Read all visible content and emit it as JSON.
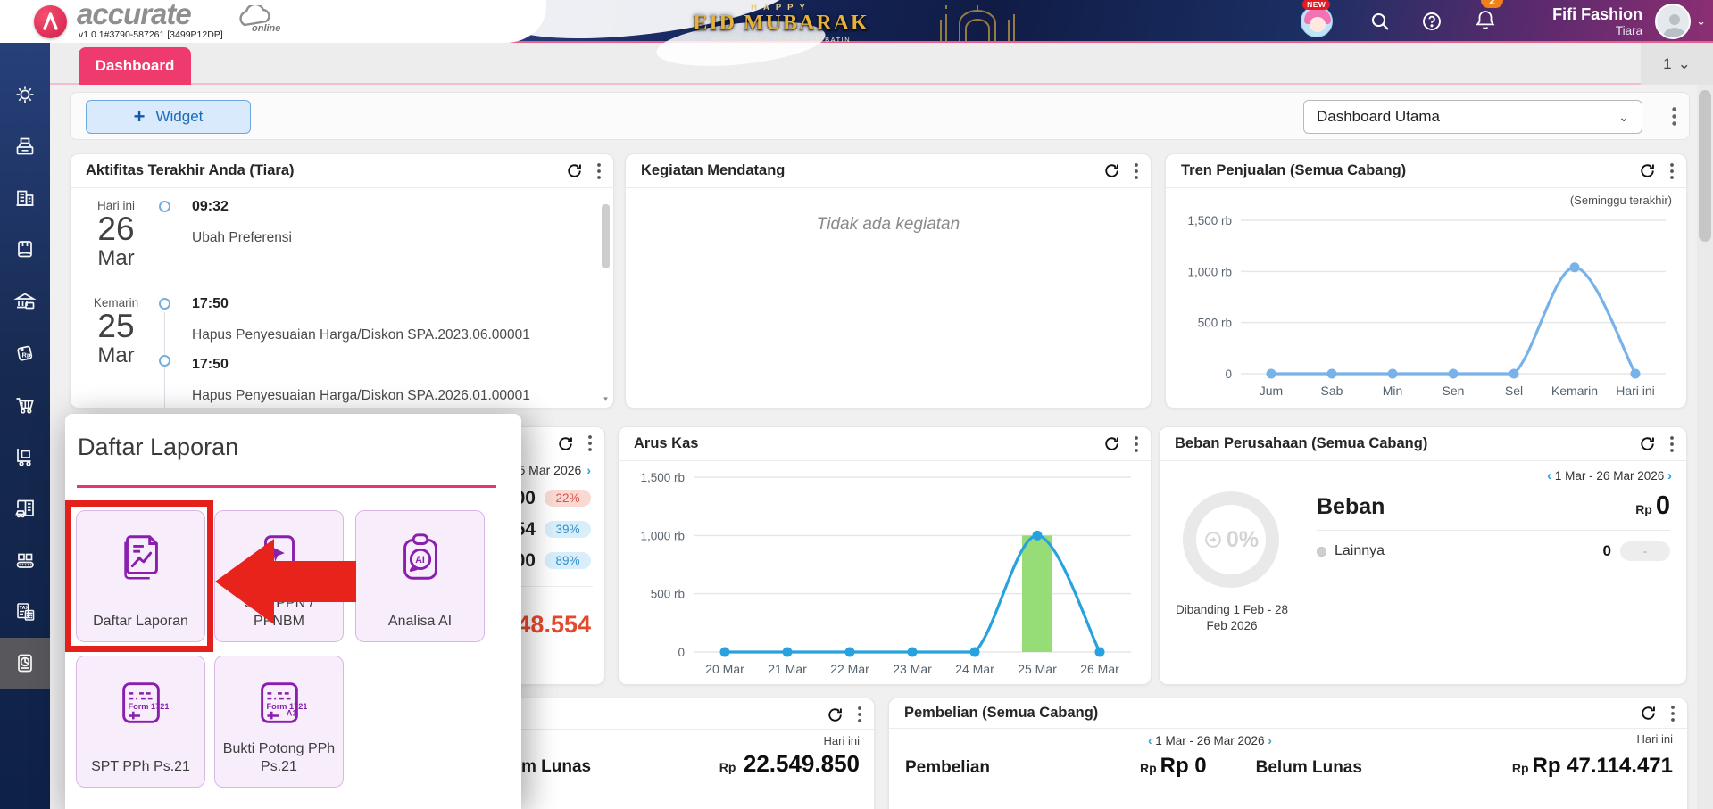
{
  "topbar": {
    "brand": {
      "name": "accurate",
      "online_label": "online",
      "version": "v1.0.1#3790-587261 [3499P12DP]"
    },
    "banner": {
      "happy": "HAPPY",
      "title": "EID MUBARAK",
      "subtitle": "MOHON MAAF LAHIR DAN BATIN"
    },
    "new_badge": "NEW",
    "notification_count": "2",
    "user": {
      "company": "Fifi Fashion",
      "name": "Tiara"
    }
  },
  "tabbar": {
    "tabs": [
      {
        "label": "Dashboard",
        "active": true
      }
    ],
    "tab_count": "1"
  },
  "toolbar": {
    "widget_button": "Widget",
    "dashboard_select": "Dashboard Utama"
  },
  "sidebar": {
    "items": [
      "settings",
      "sales-register",
      "company",
      "journal",
      "bank",
      "price-list-rp",
      "purchases-cart",
      "inventory-trolley",
      "fixed-assets",
      "manufacturing",
      "tax",
      "reports"
    ],
    "active_item": "reports",
    "tax_label": "TAX",
    "rp_label": "Rp"
  },
  "cards": {
    "aktifitas": {
      "title": "Aktifitas Terakhir Anda (Tiara)",
      "entries": [
        {
          "day_label": "Hari ini",
          "day": "26",
          "month": "Mar",
          "items": [
            {
              "time": "09:32",
              "text": "Ubah Preferensi"
            }
          ]
        },
        {
          "day_label": "Kemarin",
          "day": "25",
          "month": "Mar",
          "items": [
            {
              "time": "17:50",
              "text": "Hapus Penyesuaian Harga/Diskon SPA.2023.06.00001"
            },
            {
              "time": "17:50",
              "text": "Hapus Penyesuaian Harga/Diskon SPA.2026.01.00001"
            }
          ]
        }
      ]
    },
    "kegiatan": {
      "title": "Kegiatan Mendatang",
      "empty_text": "Tidak ada kegiatan"
    },
    "tren_penjualan": {
      "title": "Tren Penjualan (Semua Cabang)",
      "subtitle": "(Seminggu terakhir)"
    },
    "penjualan_partial": {
      "date_fragment": "5 Mar 2026",
      "rows": [
        {
          "value": "000",
          "badge": "22%"
        },
        {
          "value": "254",
          "badge": "39%"
        },
        {
          "value": "300",
          "badge": "89%"
        }
      ],
      "total_fragment": "048.554"
    },
    "arus_kas": {
      "title": "Arus Kas"
    },
    "beban": {
      "title": "Beban Perusahaan (Semua Cabang)",
      "date_range": "1 Mar - 26 Mar 2026",
      "donut_percent": "0%",
      "donut_caption": "Dibanding 1 Feb - 28 Feb 2026",
      "section_label": "Beban",
      "currency": "Rp",
      "total": "0",
      "row_label": "Lainnya",
      "row_value": "0",
      "row_badge": "-"
    },
    "lunas_partial": {
      "period_label": "Hari ini",
      "label_fragment": "m Lunas",
      "currency": "Rp",
      "amount": "22.549.850"
    },
    "pembelian": {
      "title": "Pembelian (Semua Cabang)",
      "date_range": "1 Mar - 26 Mar 2026",
      "period_label": "Hari ini",
      "left_label": "Pembelian",
      "left_currency": "Rp",
      "left_amount": "Rp 0",
      "right_label": "Belum Lunas",
      "right_currency": "Rp",
      "right_amount": "Rp 47.114.471"
    }
  },
  "popup": {
    "title": "Daftar Laporan",
    "highlighted_tile": "Daftar Laporan",
    "tiles": [
      {
        "label": "Daftar Laporan"
      },
      {
        "label": "SPT PPN / PPNBM"
      },
      {
        "label": "Analisa AI"
      },
      {
        "label": "SPT PPh Ps.21"
      },
      {
        "label": "Bukti Potong PPh Ps.21"
      }
    ],
    "icon_texts": {
      "ai": "AI",
      "form1721": "Form 1721",
      "a1": "A1"
    }
  },
  "icons": {
    "plus": "+",
    "chevron_down": "⌄",
    "chevron_left": "‹",
    "chevron_right": "›",
    "scroll_down": "▾"
  },
  "chart_data": [
    {
      "id": "tren_penjualan",
      "type": "line",
      "title": "Tren Penjualan (Semua Cabang)",
      "subtitle": "(Seminggu terakhir)",
      "categories": [
        "Jum",
        "Sab",
        "Min",
        "Sen",
        "Sel",
        "Kemarin",
        "Hari ini"
      ],
      "values": [
        0,
        0,
        0,
        0,
        0,
        1040,
        0
      ],
      "unit": "rb",
      "ylim": [
        0,
        1500
      ],
      "yticks": [
        0,
        500,
        1000,
        1500
      ],
      "ytick_labels": [
        "0",
        "500 rb",
        "1,000 rb",
        "1,500 rb"
      ],
      "line_color": "#79b2e8",
      "grid": true,
      "legend": false
    },
    {
      "id": "arus_kas",
      "type": "line",
      "title": "Arus Kas",
      "categories": [
        "20 Mar",
        "21 Mar",
        "22 Mar",
        "23 Mar",
        "24 Mar",
        "25 Mar",
        "26 Mar"
      ],
      "values": [
        0,
        0,
        0,
        0,
        0,
        1000,
        0
      ],
      "unit": "rb",
      "ylim": [
        0,
        1500
      ],
      "yticks": [
        0,
        500,
        1000,
        1500
      ],
      "ytick_labels": [
        "0",
        "500 rb",
        "1,000 rb",
        "1,500 rb"
      ],
      "line_color": "#28a2df",
      "grid": true,
      "legend": false,
      "highlight_bar": {
        "index": 5,
        "color": "#97dd77"
      }
    }
  ],
  "colors": {
    "topbar_navy": "#16265a",
    "accent_pink": "#ee3a6c",
    "tile_purple": "#8a1fae",
    "annotation_red": "#e3201b",
    "sales_line": "#79b2e8",
    "cash_line": "#28a2df",
    "cash_bar_green": "#97dd77",
    "notification_orange": "#f08019",
    "badge_red_bg": "#fbd9d3",
    "badge_blue_bg": "#d9eefb",
    "total_red": "#e4492e"
  }
}
